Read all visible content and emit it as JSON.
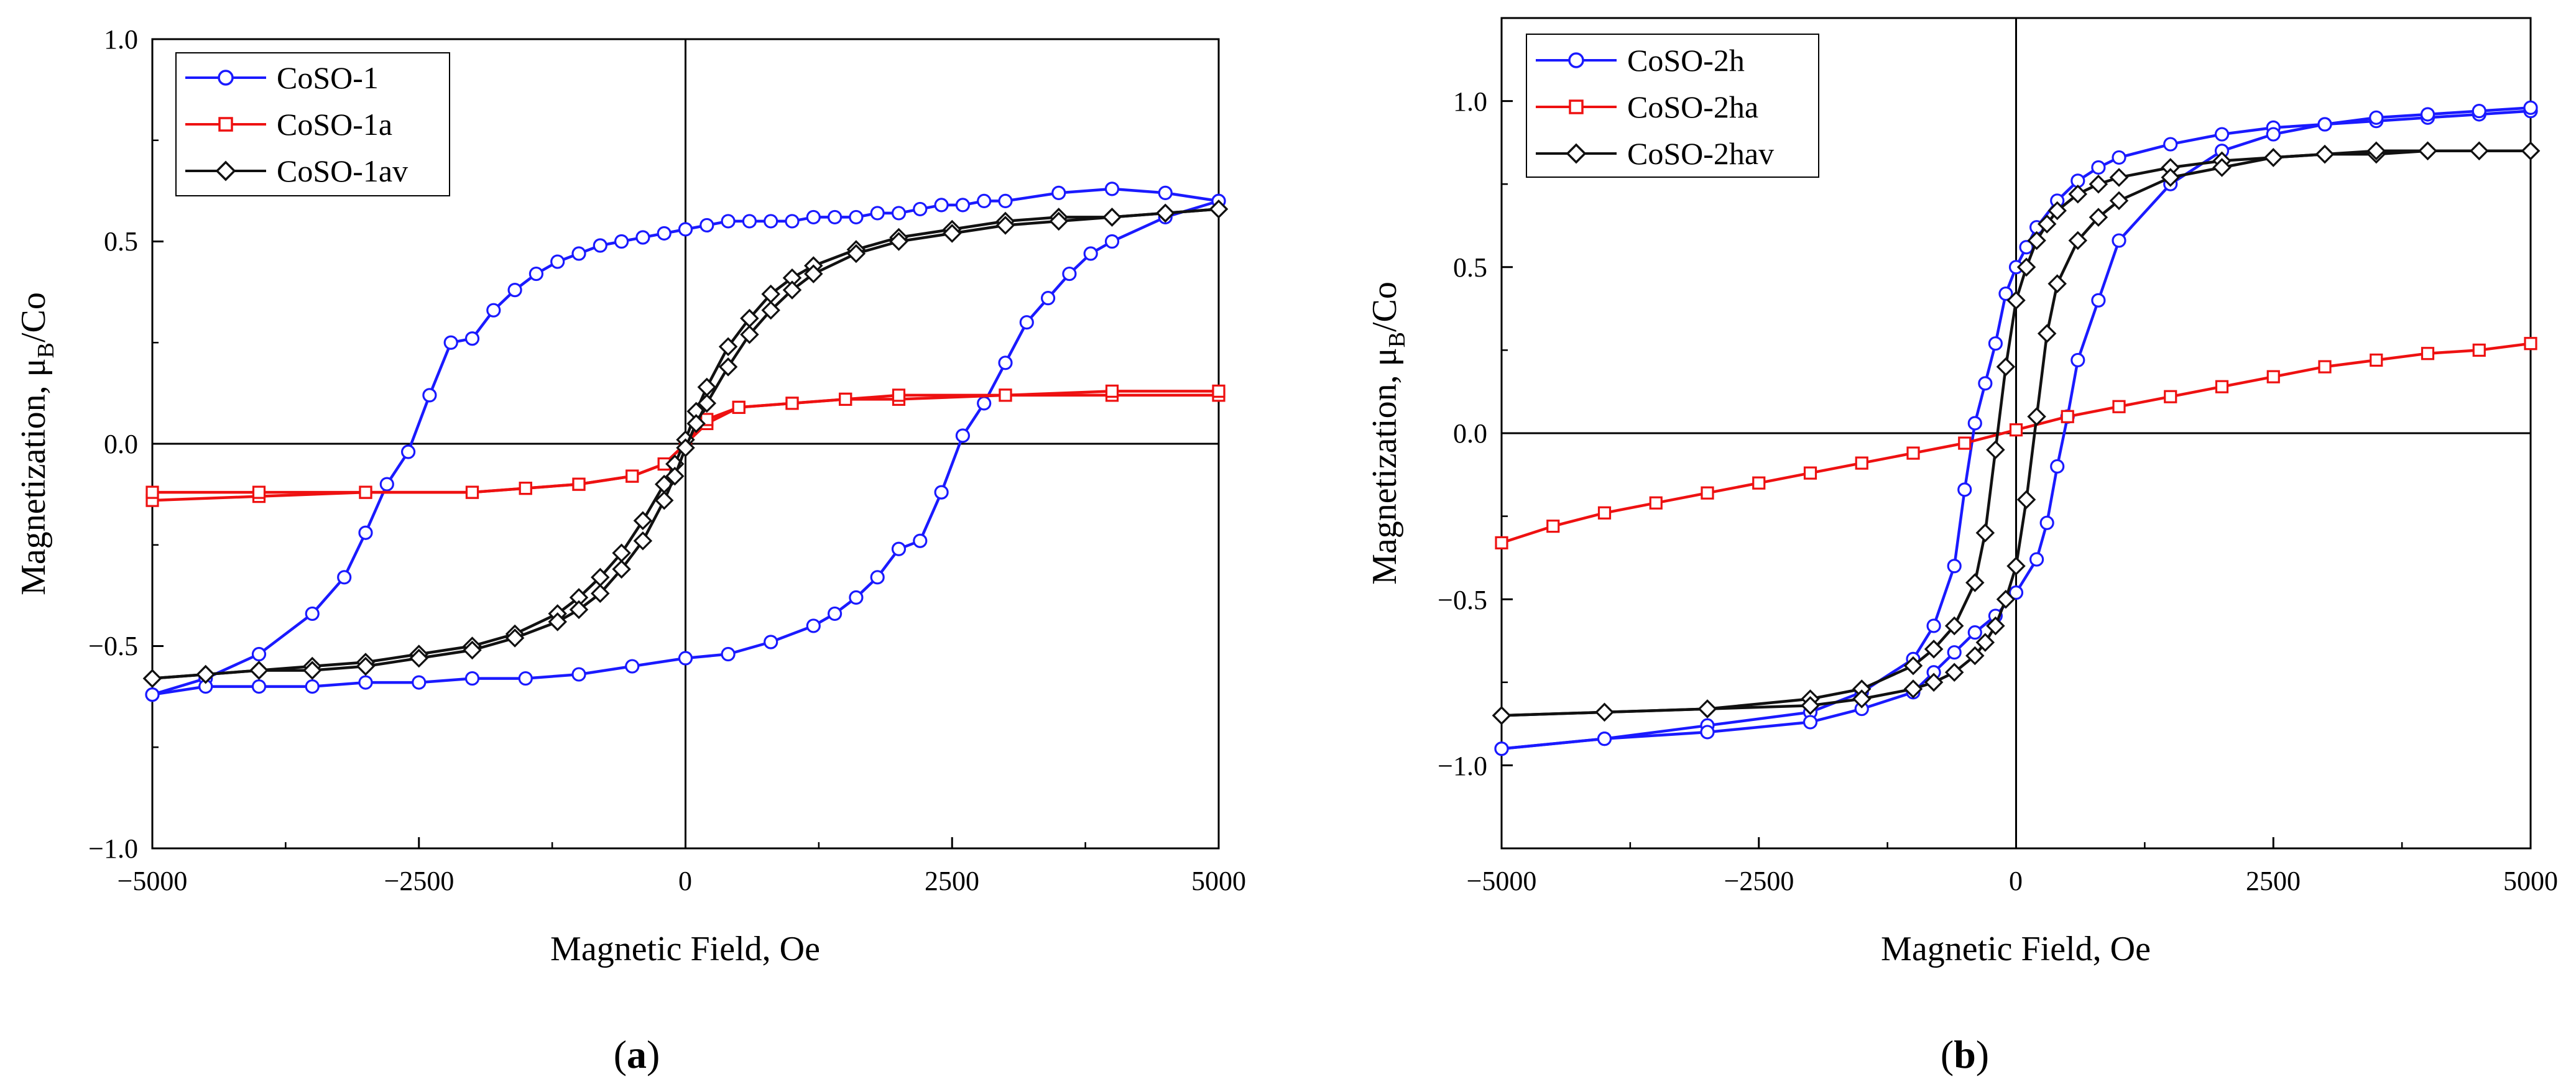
{
  "figure": {
    "panels": [
      "(a)",
      "(b)"
    ]
  },
  "chart_data": [
    {
      "type": "line",
      "panel_label": "a",
      "title": "",
      "xlabel": "Magnetic Field, Oe",
      "ylabel": "Magnetization, μB/Co",
      "ylabel_main": "Magnetization, μ",
      "ylabel_sub": "B",
      "ylabel_tail": "/Co",
      "xlim": [
        -5000,
        5000
      ],
      "ylim": [
        -1.0,
        1.0
      ],
      "x_ticks": [
        -5000,
        -2500,
        0,
        2500,
        5000
      ],
      "x_tick_labels": [
        "−5000",
        "−2500",
        "0",
        "2500",
        "5000"
      ],
      "y_ticks": [
        -1.0,
        -0.5,
        0.0,
        0.5,
        1.0
      ],
      "y_tick_labels": [
        "−1.0",
        "−0.5",
        "0.0",
        "0.5",
        "1.0"
      ],
      "grid": false,
      "zero_lines": true,
      "legend_position": "top-left",
      "series": [
        {
          "name": "CoSO-1",
          "color": "#1a1aff",
          "marker": "circle",
          "descending": {
            "x": [
              5000,
              4500,
              4000,
              3500,
              3000,
              2800,
              2600,
              2400,
              2200,
              2000,
              1800,
              1600,
              1400,
              1200,
              1000,
              800,
              600,
              400,
              200,
              0,
              -200,
              -400,
              -600,
              -800,
              -1000,
              -1200,
              -1400,
              -1600,
              -1800,
              -2000,
              -2200,
              -2400,
              -2600,
              -2800,
              -3000,
              -3200,
              -3500,
              -4000,
              -4500,
              -5000
            ],
            "y": [
              0.6,
              0.62,
              0.63,
              0.62,
              0.6,
              0.6,
              0.59,
              0.59,
              0.58,
              0.57,
              0.57,
              0.56,
              0.56,
              0.56,
              0.55,
              0.55,
              0.55,
              0.55,
              0.54,
              0.53,
              0.52,
              0.51,
              0.5,
              0.49,
              0.47,
              0.45,
              0.42,
              0.38,
              0.33,
              0.26,
              0.25,
              0.12,
              -0.02,
              -0.1,
              -0.22,
              -0.33,
              -0.42,
              -0.52,
              -0.58,
              -0.62
            ]
          },
          "ascending": {
            "x": [
              -5000,
              -4500,
              -4000,
              -3500,
              -3000,
              -2500,
              -2000,
              -1500,
              -1000,
              -500,
              0,
              400,
              800,
              1200,
              1400,
              1600,
              1800,
              2000,
              2200,
              2400,
              2600,
              2800,
              3000,
              3200,
              3400,
              3600,
              3800,
              4000,
              4500,
              5000
            ],
            "y": [
              -0.62,
              -0.6,
              -0.6,
              -0.6,
              -0.59,
              -0.59,
              -0.58,
              -0.58,
              -0.57,
              -0.55,
              -0.53,
              -0.52,
              -0.49,
              -0.45,
              -0.42,
              -0.38,
              -0.33,
              -0.26,
              -0.24,
              -0.12,
              0.02,
              0.1,
              0.2,
              0.3,
              0.36,
              0.42,
              0.47,
              0.5,
              0.56,
              0.6
            ]
          }
        },
        {
          "name": "CoSO-1a",
          "color": "#ee1111",
          "marker": "square",
          "descending": {
            "x": [
              5000,
              4000,
              3000,
              2000,
              1500,
              1000,
              500,
              200,
              0,
              -200,
              -500,
              -1000,
              -1500,
              -2000,
              -3000,
              -4000,
              -5000
            ],
            "y": [
              0.12,
              0.12,
              0.12,
              0.11,
              0.11,
              0.1,
              0.09,
              0.05,
              0.0,
              -0.05,
              -0.08,
              -0.1,
              -0.11,
              -0.12,
              -0.12,
              -0.13,
              -0.14
            ]
          },
          "ascending": {
            "x": [
              -5000,
              -4000,
              -3000,
              -2000,
              -1500,
              -1000,
              -500,
              -200,
              0,
              200,
              500,
              1000,
              1500,
              2000,
              3000,
              4000,
              5000
            ],
            "y": [
              -0.12,
              -0.12,
              -0.12,
              -0.12,
              -0.11,
              -0.1,
              -0.08,
              -0.05,
              0.0,
              0.06,
              0.09,
              0.1,
              0.11,
              0.12,
              0.12,
              0.13,
              0.13
            ]
          }
        },
        {
          "name": "CoSO-1av",
          "color": "#111111",
          "marker": "diamond",
          "descending": {
            "x": [
              5000,
              4500,
              4000,
              3500,
              3000,
              2500,
              2000,
              1600,
              1200,
              1000,
              800,
              600,
              400,
              200,
              100,
              0,
              -100,
              -200,
              -400,
              -600,
              -800,
              -1000,
              -1200,
              -1600,
              -2000,
              -2500,
              -3000,
              -3500,
              -4000,
              -4500,
              -5000
            ],
            "y": [
              0.58,
              0.57,
              0.56,
              0.56,
              0.55,
              0.53,
              0.51,
              0.48,
              0.44,
              0.41,
              0.37,
              0.31,
              0.24,
              0.14,
              0.08,
              0.01,
              -0.05,
              -0.1,
              -0.19,
              -0.27,
              -0.33,
              -0.38,
              -0.42,
              -0.47,
              -0.5,
              -0.52,
              -0.54,
              -0.55,
              -0.56,
              -0.57,
              -0.58
            ]
          },
          "ascending": {
            "x": [
              -5000,
              -4500,
              -4000,
              -3500,
              -3000,
              -2500,
              -2000,
              -1600,
              -1200,
              -1000,
              -800,
              -600,
              -400,
              -200,
              -100,
              0,
              100,
              200,
              400,
              600,
              800,
              1000,
              1200,
              1600,
              2000,
              2500,
              3000,
              3500,
              4000,
              4500,
              5000
            ],
            "y": [
              -0.58,
              -0.57,
              -0.56,
              -0.56,
              -0.55,
              -0.53,
              -0.51,
              -0.48,
              -0.44,
              -0.41,
              -0.37,
              -0.31,
              -0.24,
              -0.14,
              -0.08,
              -0.01,
              0.05,
              0.1,
              0.19,
              0.27,
              0.33,
              0.38,
              0.42,
              0.47,
              0.5,
              0.52,
              0.54,
              0.55,
              0.56,
              0.57,
              0.58
            ]
          }
        }
      ]
    },
    {
      "type": "line",
      "panel_label": "b",
      "title": "",
      "xlabel": "Magnetic Field, Oe",
      "ylabel": "Magnetization, μB/Co",
      "ylabel_main": "Magnetization, μ",
      "ylabel_sub": "B",
      "ylabel_tail": "/Co",
      "xlim": [
        -5000,
        5000
      ],
      "ylim": [
        -1.25,
        1.25
      ],
      "x_ticks": [
        -5000,
        -2500,
        0,
        2500,
        5000
      ],
      "x_tick_labels": [
        "−5000",
        "−2500",
        "0",
        "2500",
        "5000"
      ],
      "y_ticks": [
        -1.0,
        -0.5,
        0.0,
        0.5,
        1.0
      ],
      "y_tick_labels": [
        "−1.0",
        "−0.5",
        "0.0",
        "0.5",
        "1.0"
      ],
      "grid": false,
      "zero_lines": true,
      "legend_position": "top-left",
      "series": [
        {
          "name": "CoSO-2h",
          "color": "#1a1aff",
          "marker": "circle",
          "descending": {
            "x": [
              5000,
              4500,
              4000,
              3500,
              3000,
              2500,
              2000,
              1500,
              1000,
              800,
              600,
              400,
              200,
              100,
              0,
              -100,
              -200,
              -300,
              -400,
              -500,
              -600,
              -800,
              -1000,
              -1500,
              -2000,
              -3000,
              -4000,
              -5000
            ],
            "y": [
              0.97,
              0.96,
              0.95,
              0.94,
              0.93,
              0.92,
              0.9,
              0.87,
              0.83,
              0.8,
              0.76,
              0.7,
              0.62,
              0.56,
              0.5,
              0.42,
              0.27,
              0.15,
              0.03,
              -0.17,
              -0.4,
              -0.58,
              -0.68,
              -0.78,
              -0.84,
              -0.88,
              -0.92,
              -0.95
            ]
          },
          "ascending": {
            "x": [
              -5000,
              -4000,
              -3000,
              -2000,
              -1500,
              -1000,
              -800,
              -600,
              -400,
              -200,
              0,
              200,
              300,
              400,
              500,
              600,
              800,
              1000,
              1500,
              2000,
              2500,
              3000,
              3500,
              4000,
              4500,
              5000
            ],
            "y": [
              -0.95,
              -0.92,
              -0.9,
              -0.87,
              -0.83,
              -0.78,
              -0.72,
              -0.66,
              -0.6,
              -0.55,
              -0.48,
              -0.38,
              -0.27,
              -0.1,
              0.05,
              0.22,
              0.4,
              0.58,
              0.75,
              0.85,
              0.9,
              0.93,
              0.95,
              0.96,
              0.97,
              0.98
            ]
          }
        },
        {
          "name": "CoSO-2ha",
          "color": "#ee1111",
          "marker": "square",
          "descending": {
            "x": [
              5000,
              4500,
              4000,
              3500,
              3000,
              2500,
              2000,
              1500,
              1000,
              500,
              0,
              -500,
              -1000,
              -1500,
              -2000,
              -2500,
              -3000,
              -3500,
              -4000,
              -4500,
              -5000
            ],
            "y": [
              0.27,
              0.25,
              0.24,
              0.22,
              0.2,
              0.17,
              0.14,
              0.11,
              0.08,
              0.05,
              0.01,
              -0.03,
              -0.06,
              -0.09,
              -0.12,
              -0.15,
              -0.18,
              -0.21,
              -0.24,
              -0.28,
              -0.33
            ]
          }
        },
        {
          "name": "CoSO-2hav",
          "color": "#111111",
          "marker": "diamond",
          "descending": {
            "x": [
              5000,
              4500,
              4000,
              3500,
              3000,
              2500,
              2000,
              1500,
              1000,
              800,
              600,
              400,
              300,
              200,
              100,
              0,
              -100,
              -200,
              -300,
              -400,
              -600,
              -800,
              -1000,
              -1500,
              -2000,
              -3000,
              -4000,
              -5000
            ],
            "y": [
              0.85,
              0.85,
              0.85,
              0.84,
              0.84,
              0.83,
              0.82,
              0.8,
              0.77,
              0.75,
              0.72,
              0.67,
              0.63,
              0.58,
              0.5,
              0.4,
              0.2,
              -0.05,
              -0.3,
              -0.45,
              -0.58,
              -0.65,
              -0.7,
              -0.77,
              -0.8,
              -0.83,
              -0.84,
              -0.85
            ]
          },
          "ascending": {
            "x": [
              -5000,
              -4000,
              -3000,
              -2000,
              -1500,
              -1000,
              -800,
              -600,
              -400,
              -300,
              -200,
              -100,
              0,
              100,
              200,
              300,
              400,
              600,
              800,
              1000,
              1500,
              2000,
              2500,
              3000,
              3500,
              4000,
              4500,
              5000
            ],
            "y": [
              -0.85,
              -0.84,
              -0.83,
              -0.82,
              -0.8,
              -0.77,
              -0.75,
              -0.72,
              -0.67,
              -0.63,
              -0.58,
              -0.5,
              -0.4,
              -0.2,
              0.05,
              0.3,
              0.45,
              0.58,
              0.65,
              0.7,
              0.77,
              0.8,
              0.83,
              0.84,
              0.85,
              0.85,
              0.85,
              0.85
            ]
          }
        }
      ]
    }
  ]
}
